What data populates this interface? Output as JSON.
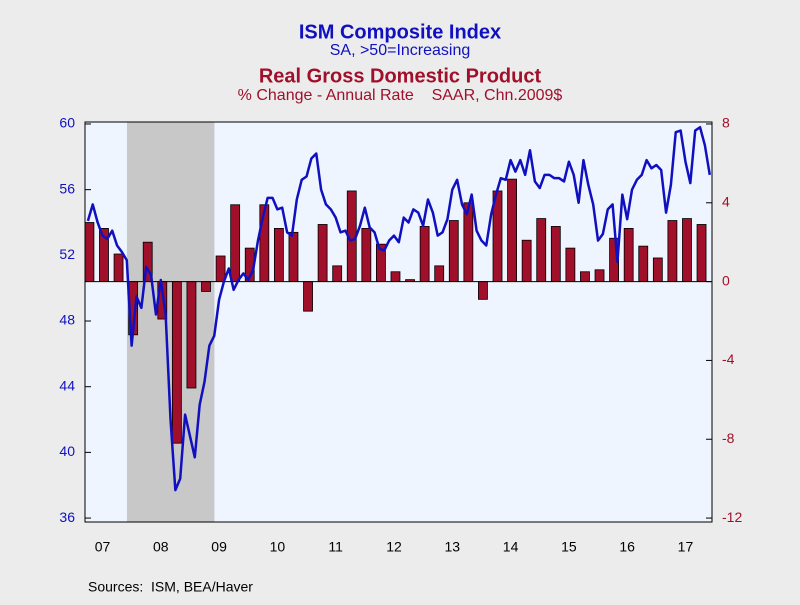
{
  "chart_data": {
    "type": "combo",
    "xlim": [
      2007.2,
      2017.955
    ],
    "xticks": [
      {
        "value": 2007.5,
        "label": "07"
      },
      {
        "value": 2008.5,
        "label": "08"
      },
      {
        "value": 2009.5,
        "label": "09"
      },
      {
        "value": 2010.5,
        "label": "10"
      },
      {
        "value": 2011.5,
        "label": "11"
      },
      {
        "value": 2012.5,
        "label": "12"
      },
      {
        "value": 2013.5,
        "label": "13"
      },
      {
        "value": 2014.5,
        "label": "14"
      },
      {
        "value": 2015.5,
        "label": "15"
      },
      {
        "value": 2016.5,
        "label": "16"
      },
      {
        "value": 2017.5,
        "label": "17"
      }
    ],
    "ylim": [
      35.76,
      60.12
    ],
    "yticks": [
      36,
      40,
      44,
      48,
      52,
      56,
      60
    ],
    "y2lim": [
      -12.2,
      8.1
    ],
    "y2ticks": [
      -12,
      -8,
      -4,
      0,
      4,
      8
    ],
    "shading": [
      2007.92,
      2009.42
    ],
    "shading_color": "#c8c8c8",
    "source": "Sources:  ISM, BEA/Haver",
    "series": [
      {
        "name": "ISM Composite Index",
        "subtitle": "SA, >50=Increasing",
        "type": "line",
        "color": "#1010c0",
        "x": [
          2007.25,
          2007.333,
          2007.417,
          2007.5,
          2007.583,
          2007.667,
          2007.75,
          2007.833,
          2007.917,
          2008,
          2008.083,
          2008.167,
          2008.25,
          2008.333,
          2008.417,
          2008.5,
          2008.583,
          2008.667,
          2008.75,
          2008.833,
          2008.917,
          2009,
          2009.083,
          2009.167,
          2009.25,
          2009.333,
          2009.417,
          2009.5,
          2009.583,
          2009.667,
          2009.75,
          2009.833,
          2009.917,
          2010,
          2010.083,
          2010.167,
          2010.25,
          2010.333,
          2010.417,
          2010.5,
          2010.583,
          2010.667,
          2010.75,
          2010.833,
          2010.917,
          2011,
          2011.083,
          2011.167,
          2011.25,
          2011.333,
          2011.417,
          2011.5,
          2011.583,
          2011.667,
          2011.75,
          2011.833,
          2011.917,
          2012,
          2012.083,
          2012.167,
          2012.25,
          2012.333,
          2012.417,
          2012.5,
          2012.583,
          2012.667,
          2012.75,
          2012.833,
          2012.917,
          2013,
          2013.083,
          2013.167,
          2013.25,
          2013.333,
          2013.417,
          2013.5,
          2013.583,
          2013.667,
          2013.75,
          2013.833,
          2013.917,
          2014,
          2014.083,
          2014.167,
          2014.25,
          2014.333,
          2014.417,
          2014.5,
          2014.583,
          2014.667,
          2014.75,
          2014.833,
          2014.917,
          2015,
          2015.083,
          2015.167,
          2015.25,
          2015.333,
          2015.417,
          2015.5,
          2015.583,
          2015.667,
          2015.75,
          2015.833,
          2015.917,
          2016,
          2016.083,
          2016.167,
          2016.25,
          2016.333,
          2016.417,
          2016.5,
          2016.583,
          2016.667,
          2016.75,
          2016.833,
          2016.917,
          2017,
          2017.083,
          2017.167,
          2017.25,
          2017.333,
          2017.417,
          2017.5,
          2017.583,
          2017.667,
          2017.75,
          2017.833,
          2017.917
        ],
        "values": [
          54.1,
          55.1,
          54.0,
          53.2,
          53.0,
          53.5,
          52.6,
          52.2,
          51.7,
          46.5,
          49.5,
          48.8,
          51.3,
          50.8,
          48.4,
          50.5,
          48.4,
          42.0,
          37.7,
          38.4,
          42.3,
          41.0,
          39.7,
          42.9,
          44.3,
          46.5,
          47.1,
          49.3,
          50.4,
          51.2,
          49.9,
          50.5,
          50.9,
          50.5,
          51.1,
          52.9,
          54.3,
          55.5,
          55.5,
          54.8,
          54.9,
          53.4,
          53.2,
          55.4,
          56.6,
          56.8,
          57.9,
          58.2,
          56.0,
          55.1,
          54.8,
          54.3,
          53.4,
          53.5,
          52.9,
          53.0,
          53.8,
          54.9,
          53.7,
          53.4,
          52.4,
          52.3,
          52.9,
          53.2,
          52.8,
          54.3,
          54.0,
          54.8,
          54.6,
          53.8,
          55.4,
          54.6,
          53.2,
          53.4,
          54.2,
          56.0,
          56.6,
          55.1,
          54.5,
          55.7,
          53.5,
          52.9,
          52.6,
          54.5,
          55.7,
          56.7,
          56.6,
          57.8,
          57.1,
          57.8,
          56.9,
          58.4,
          56.5,
          56.1,
          56.9,
          56.9,
          56.7,
          56.7,
          56.5,
          57.7,
          56.9,
          55.2,
          57.8,
          56.3,
          55.1,
          52.9,
          53.3,
          54.8,
          55.1,
          51.6,
          55.7,
          54.2,
          56.0,
          56.6,
          56.9,
          57.8,
          57.3,
          57.5,
          57.2,
          54.6,
          56.3,
          59.5,
          59.6,
          57.7,
          56.4,
          59.6,
          59.8,
          58.7,
          56.9
        ]
      },
      {
        "name": "Real Gross Domestic Product",
        "subtitle": "% Change - Annual Rate    SAAR, Chn.2009$",
        "type": "bar",
        "axis": "y2",
        "color": "#a0102a",
        "x": [
          2007.25,
          2007.5,
          2007.75,
          2008,
          2008.25,
          2008.5,
          2008.75,
          2009,
          2009.25,
          2009.5,
          2009.75,
          2010,
          2010.25,
          2010.5,
          2010.75,
          2011,
          2011.25,
          2011.5,
          2011.75,
          2012,
          2012.25,
          2012.5,
          2012.75,
          2013,
          2013.25,
          2013.5,
          2013.75,
          2014,
          2014.25,
          2014.5,
          2014.75,
          2015,
          2015.25,
          2015.5,
          2015.75,
          2016,
          2016.25,
          2016.5,
          2016.75,
          2017,
          2017.25,
          2017.5,
          2017.75
        ],
        "values": [
          3.0,
          2.7,
          1.4,
          -2.7,
          2.0,
          -1.9,
          -8.2,
          -5.4,
          -0.5,
          1.3,
          3.9,
          1.7,
          3.9,
          2.7,
          2.5,
          -1.5,
          2.9,
          0.8,
          4.6,
          2.7,
          1.9,
          0.5,
          0.1,
          2.8,
          0.8,
          3.1,
          4.0,
          -0.9,
          4.6,
          5.2,
          2.1,
          3.2,
          2.8,
          1.7,
          0.5,
          0.6,
          2.2,
          2.7,
          1.8,
          1.2,
          3.1,
          3.2,
          2.9
        ]
      }
    ]
  }
}
